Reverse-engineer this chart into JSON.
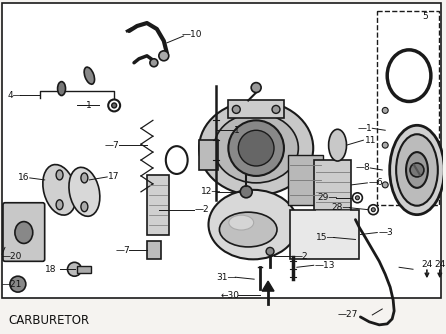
{
  "title": "CARBURETOR",
  "title_fontsize": 8.5,
  "bg_color": "#f5f3f0",
  "border_color": "#222222",
  "text_color": "#111111",
  "figsize": [
    4.46,
    3.34
  ],
  "dpi": 100,
  "img_bg": "#ffffff",
  "line_color": "#1a1a1a",
  "part_color": "#888888",
  "label_fontsize": 6.5
}
